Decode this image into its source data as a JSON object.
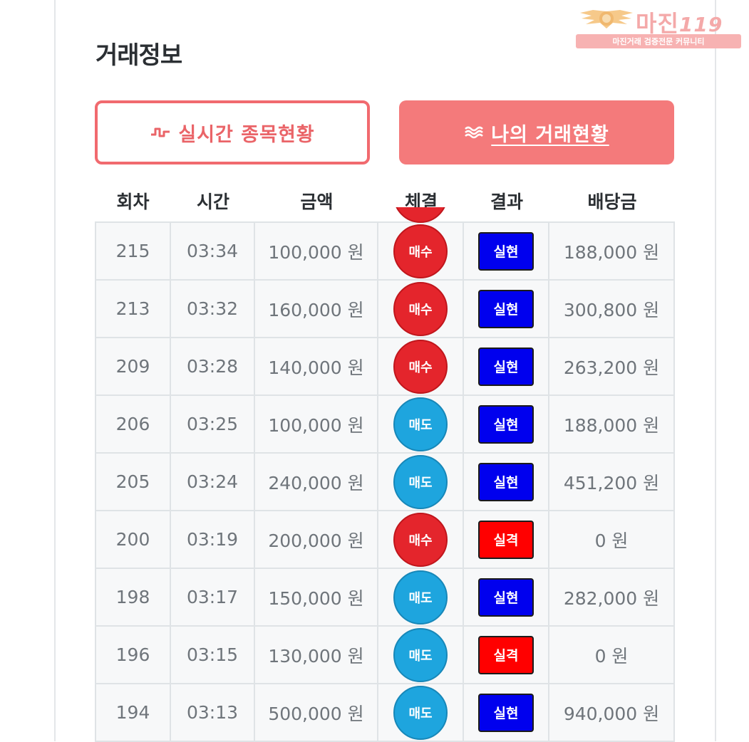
{
  "watermark": {
    "brand": "마진",
    "suffix": "119",
    "tagline": "마진거래 검증전문 커뮤니티"
  },
  "page": {
    "title": "거래정보"
  },
  "tabs": {
    "realtime": {
      "label": "실시간 종목현황",
      "icon": "pulse-wave-icon"
    },
    "my_trades": {
      "label": "나의 거래현황",
      "icon": "triple-wave-icon"
    }
  },
  "table": {
    "headers": [
      "회차",
      "시간",
      "금액",
      "체결",
      "결과",
      "배당금"
    ],
    "rows": [
      {
        "round": "215",
        "time": "03:34",
        "amount": "100,000 원",
        "side": "매수",
        "result": "실현",
        "payout": "188,000 원"
      },
      {
        "round": "213",
        "time": "03:32",
        "amount": "160,000 원",
        "side": "매수",
        "result": "실현",
        "payout": "300,800 원"
      },
      {
        "round": "209",
        "time": "03:28",
        "amount": "140,000 원",
        "side": "매수",
        "result": "실현",
        "payout": "263,200 원"
      },
      {
        "round": "206",
        "time": "03:25",
        "amount": "100,000 원",
        "side": "매도",
        "result": "실현",
        "payout": "188,000 원"
      },
      {
        "round": "205",
        "time": "03:24",
        "amount": "240,000 원",
        "side": "매도",
        "result": "실현",
        "payout": "451,200 원"
      },
      {
        "round": "200",
        "time": "03:19",
        "amount": "200,000 원",
        "side": "매수",
        "result": "실격",
        "payout": "0 원"
      },
      {
        "round": "198",
        "time": "03:17",
        "amount": "150,000 원",
        "side": "매도",
        "result": "실현",
        "payout": "282,000 원"
      },
      {
        "round": "196",
        "time": "03:15",
        "amount": "130,000 원",
        "side": "매도",
        "result": "실격",
        "payout": "0 원"
      },
      {
        "round": "194",
        "time": "03:13",
        "amount": "500,000 원",
        "side": "매도",
        "result": "실현",
        "payout": "940,000 원"
      }
    ]
  },
  "colors": {
    "buy": "#e4252c",
    "sell": "#1ea5de",
    "win": "#0000ee",
    "lose": "#ff0000",
    "accent": "#f47a7b"
  }
}
